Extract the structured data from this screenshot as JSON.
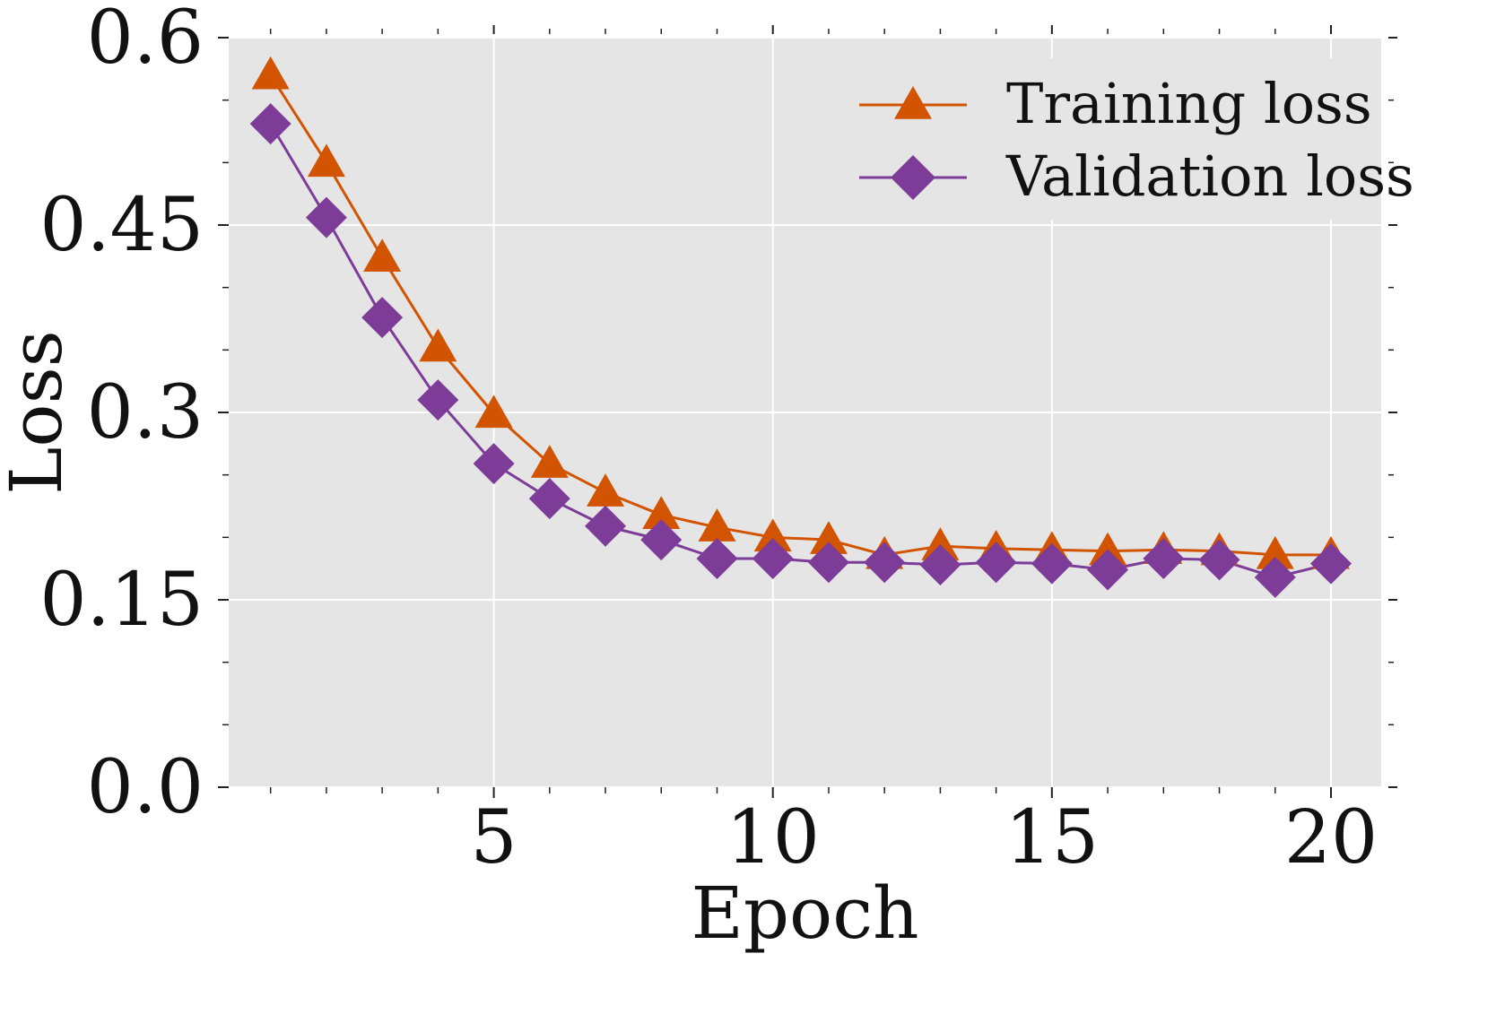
{
  "chart_data": {
    "type": "line",
    "title": "",
    "xlabel": "Epoch",
    "ylabel": "Loss",
    "xlim": [
      0.25,
      20.9
    ],
    "ylim": [
      0.0,
      0.6
    ],
    "xticks": [
      5,
      10,
      15,
      20
    ],
    "xtick_labels": [
      "5",
      "10",
      "15",
      "20"
    ],
    "yticks": [
      0.0,
      0.15,
      0.3,
      0.45,
      0.6
    ],
    "ytick_labels": [
      "0.0",
      "0.15",
      "0.3",
      "0.45",
      "0.6"
    ],
    "grid": true,
    "legend_position": "top-right",
    "x": [
      1,
      2,
      3,
      4,
      5,
      6,
      7,
      8,
      9,
      10,
      11,
      12,
      13,
      14,
      15,
      16,
      17,
      18,
      19,
      20
    ],
    "series": [
      {
        "name": "Training loss",
        "marker": "triangle",
        "color": "#d35400",
        "values": [
          0.57,
          0.5,
          0.424,
          0.352,
          0.299,
          0.259,
          0.236,
          0.218,
          0.208,
          0.2,
          0.198,
          0.186,
          0.193,
          0.191,
          0.19,
          0.189,
          0.19,
          0.189,
          0.186,
          0.186
        ]
      },
      {
        "name": "Validation loss",
        "marker": "diamond",
        "color": "#7d3c98",
        "values": [
          0.531,
          0.456,
          0.376,
          0.31,
          0.259,
          0.231,
          0.209,
          0.198,
          0.183,
          0.183,
          0.18,
          0.18,
          0.178,
          0.18,
          0.179,
          0.174,
          0.183,
          0.182,
          0.168,
          0.179
        ]
      }
    ]
  }
}
